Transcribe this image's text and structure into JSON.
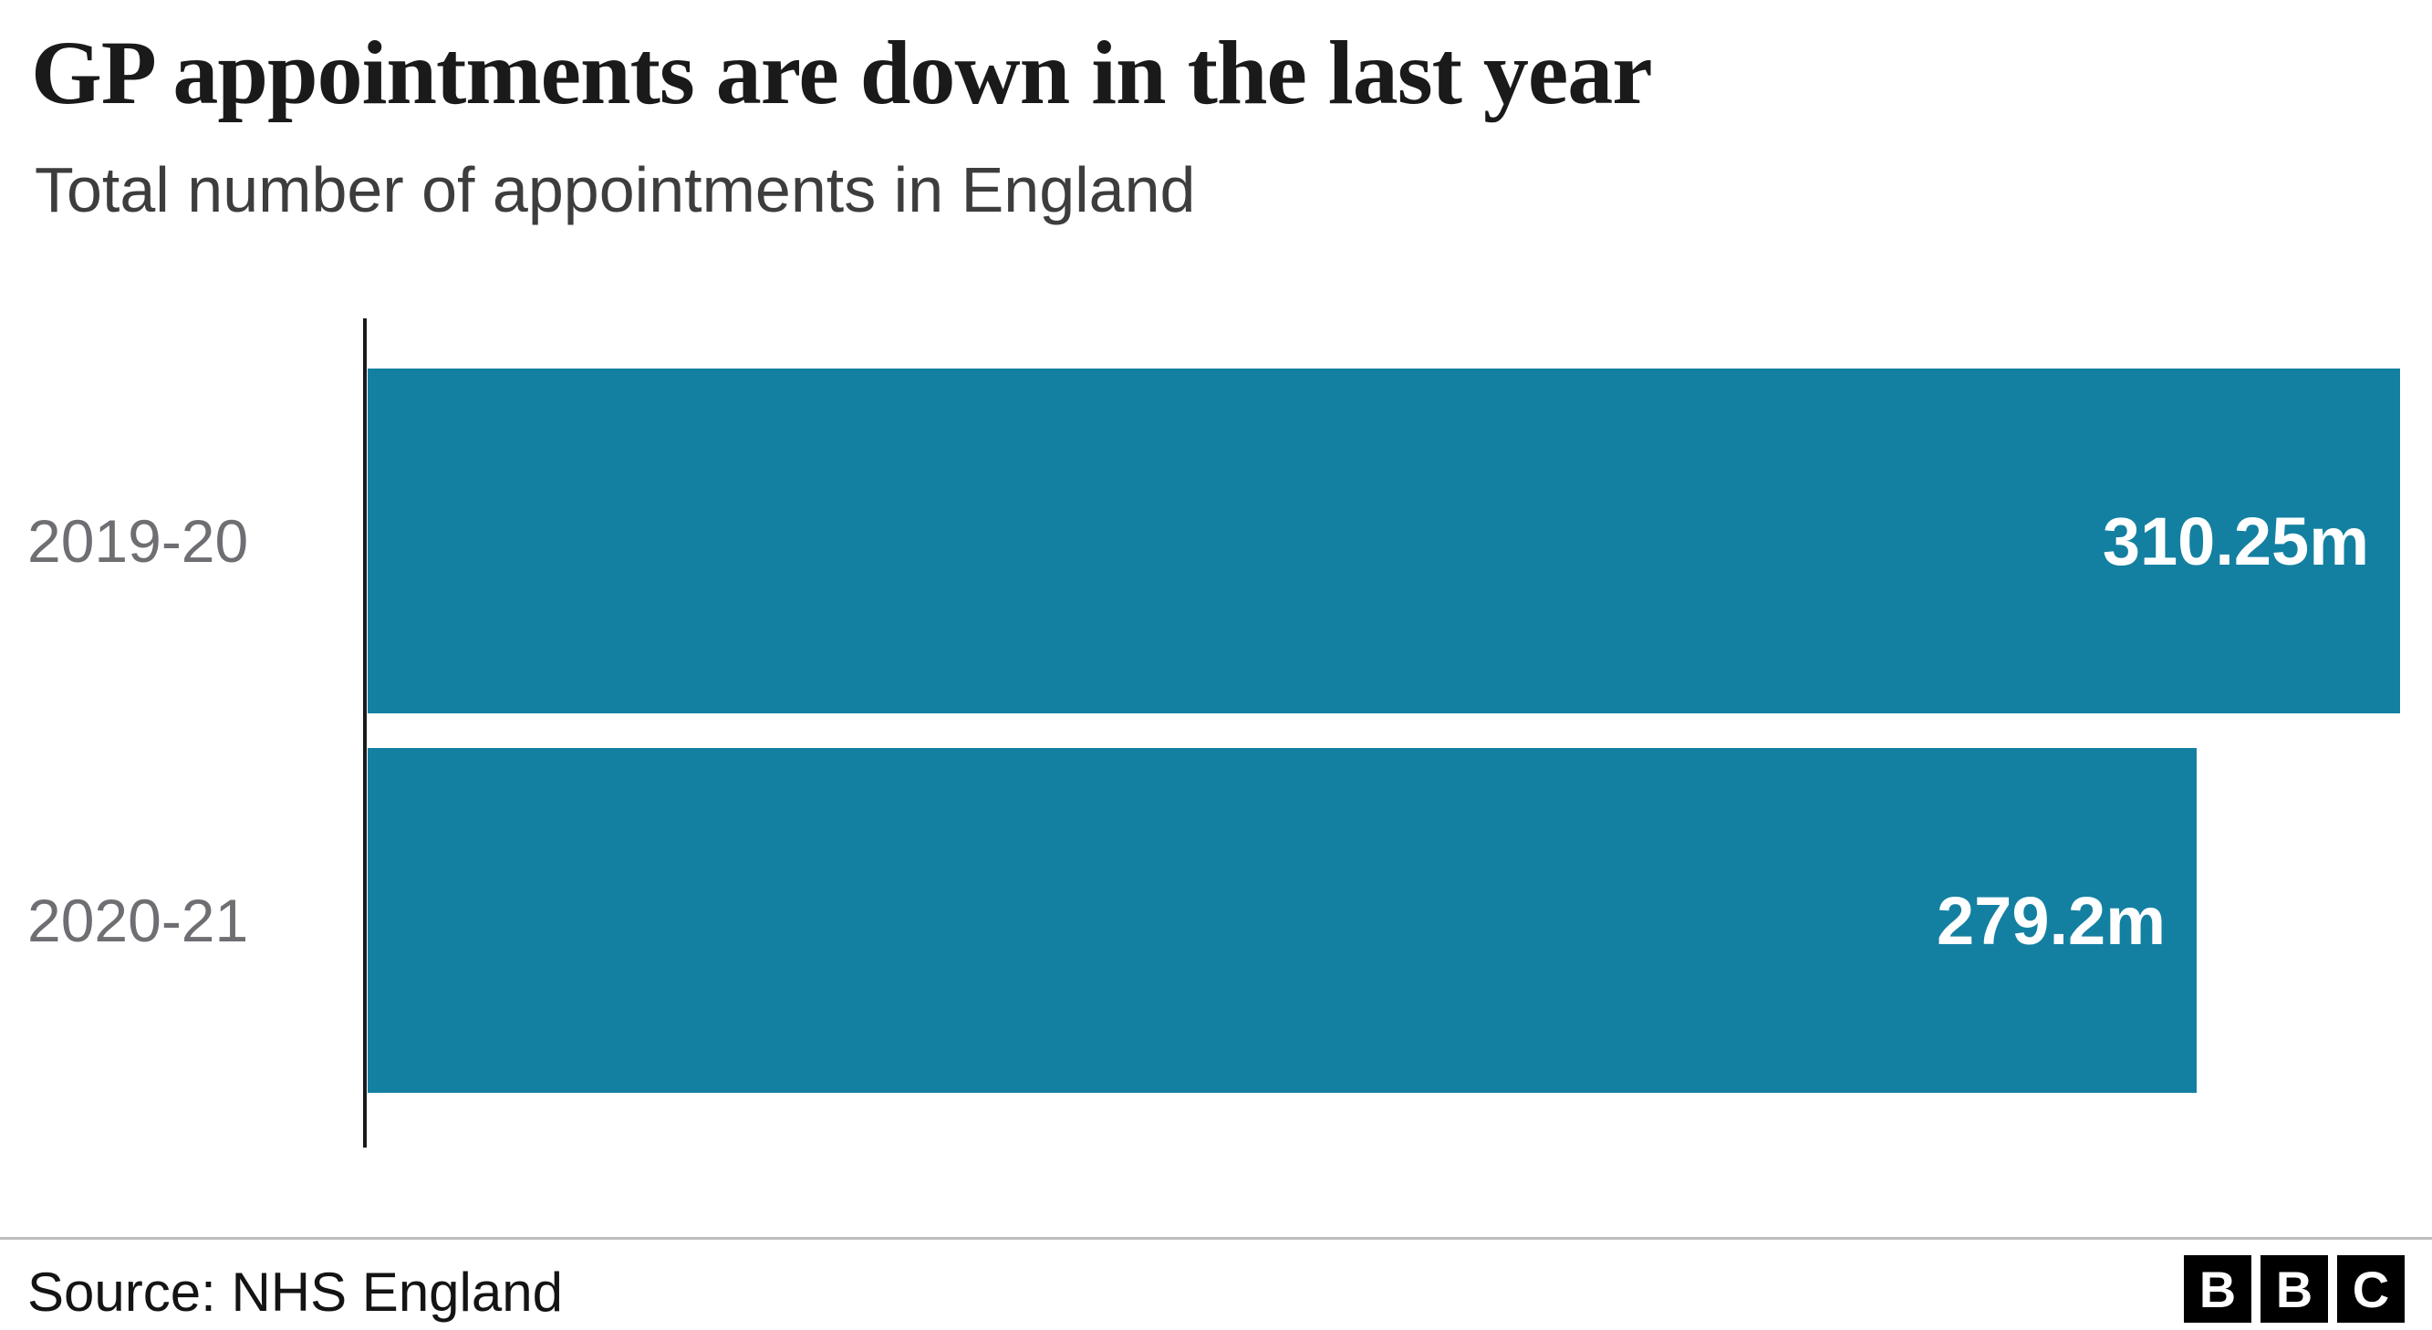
{
  "header": {
    "title": "GP appointments are down in the last year",
    "subtitle": "Total number of appointments in England"
  },
  "chart_data": {
    "type": "bar",
    "orientation": "horizontal",
    "title": "GP appointments are down in the last year",
    "subtitle": "Total number of appointments in England",
    "categories": [
      "2019-20",
      "2020-21"
    ],
    "values": [
      310.25,
      279.2
    ],
    "value_labels": [
      "310.25m",
      "279.2m"
    ],
    "unit": "millions of appointments",
    "xlim": [
      0,
      310.25
    ],
    "bar_color": "#1380A1",
    "axis_color": "#1a1a1a",
    "label_color": "#6e6e73",
    "grid": false,
    "legend": false
  },
  "footer": {
    "source": "Source: NHS England",
    "logo_letters": [
      "B",
      "B",
      "C"
    ]
  }
}
